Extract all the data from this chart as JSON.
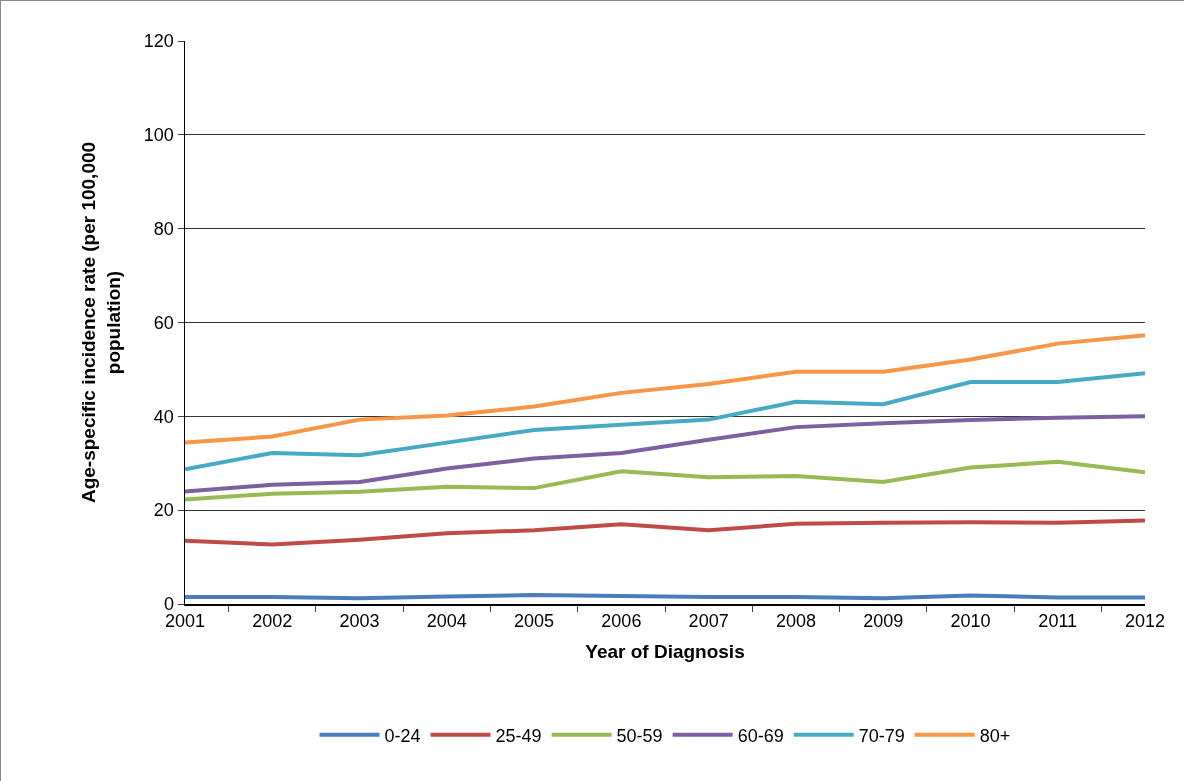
{
  "chart_data": {
    "type": "line",
    "xlabel": "Year of Diagnosis",
    "ylabel": "Age-specific incidence rate (per 100,000 population)",
    "categories": [
      "2001",
      "2002",
      "2003",
      "2004",
      "2005",
      "2006",
      "2007",
      "2008",
      "2009",
      "2010",
      "2011",
      "2012"
    ],
    "ylim": [
      0,
      120
    ],
    "yticks": [
      0,
      20,
      40,
      60,
      80,
      100,
      120
    ],
    "grid": "y",
    "legend": "bottom",
    "marker": "none",
    "line_style": "solid",
    "series": [
      {
        "name": "0-24",
        "color": "#4a7ebb",
        "values": [
          1.5,
          1.5,
          1.2,
          1.6,
          1.9,
          1.7,
          1.5,
          1.5,
          1.2,
          1.8,
          1.4,
          1.4
        ]
      },
      {
        "name": "25-49",
        "color": "#be4b48",
        "values": [
          13.5,
          12.7,
          13.7,
          15.1,
          15.7,
          17,
          15.7,
          17.1,
          17.3,
          17.4,
          17.3,
          17.8
        ]
      },
      {
        "name": "50-59",
        "color": "#98b954",
        "values": [
          22.3,
          23.5,
          23.9,
          25,
          24.7,
          28.3,
          27,
          27.3,
          26,
          29.1,
          30.3,
          28.1
        ]
      },
      {
        "name": "60-69",
        "color": "#7d60a0",
        "values": [
          24,
          25.4,
          26,
          28.9,
          31,
          32.2,
          35,
          37.7,
          38.5,
          39.2,
          39.7,
          40
        ]
      },
      {
        "name": "70-79",
        "color": "#46aac5",
        "values": [
          28.7,
          32.2,
          31.7,
          34.4,
          37.1,
          38.2,
          39.3,
          43.1,
          42.6,
          47.3,
          47.3,
          49.2
        ]
      },
      {
        "name": "80+",
        "color": "#f79646",
        "values": [
          34.4,
          35.7,
          39.3,
          40.2,
          42.1,
          45,
          46.9,
          49.5,
          49.5,
          52.1,
          55.5,
          57.3
        ]
      }
    ]
  }
}
